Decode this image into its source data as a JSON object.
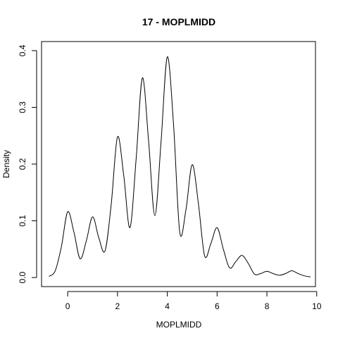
{
  "chart_data": {
    "type": "line",
    "title": "17 - MOPLMIDD",
    "xlabel": "MOPLMIDD",
    "ylabel": "Density",
    "xlim": [
      -1.05,
      9.95
    ],
    "ylim": [
      -0.016,
      0.416
    ],
    "x_ticks": [
      0,
      2,
      4,
      6,
      8,
      10
    ],
    "x_tick_labels": [
      "0",
      "2",
      "4",
      "6",
      "8",
      "10"
    ],
    "y_ticks": [
      0.0,
      0.1,
      0.2,
      0.3,
      0.4
    ],
    "y_tick_labels": [
      "0.0",
      "0.1",
      "0.2",
      "0.3",
      "0.4"
    ],
    "grid": false,
    "legend": "none",
    "line_color": "#000000",
    "series": [
      {
        "x": [
          -0.75,
          -0.5,
          -0.25,
          0,
          0.25,
          0.5,
          0.75,
          1,
          1.25,
          1.5,
          1.75,
          2,
          2.25,
          2.5,
          2.75,
          3,
          3.25,
          3.5,
          3.75,
          4,
          4.25,
          4.5,
          4.75,
          5,
          5.25,
          5.5,
          5.75,
          6,
          6.25,
          6.5,
          6.75,
          7,
          7.25,
          7.5,
          7.75,
          8,
          8.25,
          8.5,
          8.75,
          9,
          9.25,
          9.5,
          9.75
        ],
        "values": [
          0.002,
          0.012,
          0.055,
          0.116,
          0.08,
          0.033,
          0.065,
          0.107,
          0.07,
          0.047,
          0.13,
          0.248,
          0.18,
          0.088,
          0.21,
          0.352,
          0.24,
          0.109,
          0.24,
          0.389,
          0.27,
          0.08,
          0.12,
          0.199,
          0.13,
          0.038,
          0.06,
          0.088,
          0.05,
          0.017,
          0.028,
          0.039,
          0.025,
          0.006,
          0.007,
          0.011,
          0.007,
          0.004,
          0.007,
          0.012,
          0.007,
          0.003,
          0.001
        ]
      }
    ]
  }
}
